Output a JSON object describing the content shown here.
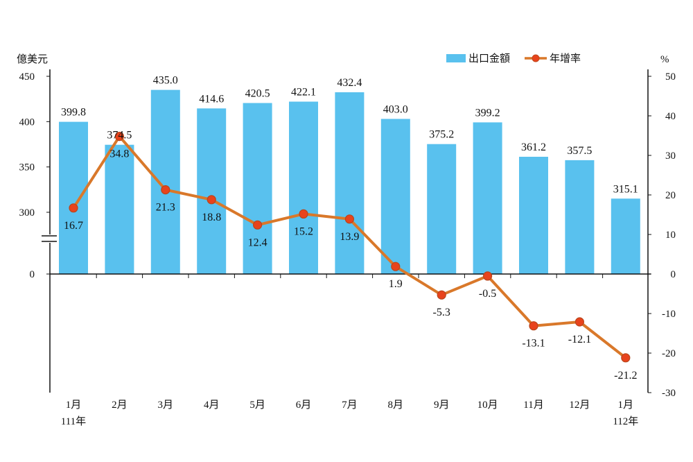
{
  "chart_data": {
    "type": "bar",
    "categories": [
      "1月",
      "2月",
      "3月",
      "4月",
      "5月",
      "6月",
      "7月",
      "8月",
      "9月",
      "10月",
      "11月",
      "12月",
      "1月"
    ],
    "year_labels": [
      "111年",
      "",
      "",
      "",
      "",
      "",
      "",
      "",
      "",
      "",
      "",
      "",
      "112年"
    ],
    "series": [
      {
        "name": "出口金額",
        "type": "bar",
        "axis": "left",
        "color": "#59c1ee",
        "values": [
          399.8,
          374.5,
          435.0,
          414.6,
          420.5,
          422.1,
          432.4,
          403.0,
          375.2,
          399.2,
          361.2,
          357.5,
          315.1
        ],
        "labels": [
          "399.8",
          "374.5",
          "435.0",
          "414.6",
          "420.5",
          "422.1",
          "432.4",
          "403.0",
          "375.2",
          "399.2",
          "361.2",
          "357.5",
          "315.1"
        ]
      },
      {
        "name": "年增率",
        "type": "line",
        "axis": "right",
        "color": "#d9782a",
        "marker_color": "#e8431c",
        "values": [
          16.7,
          34.8,
          21.3,
          18.8,
          12.4,
          15.2,
          13.9,
          1.9,
          -5.3,
          -0.5,
          -13.1,
          -12.1,
          -21.2
        ],
        "labels": [
          "16.7",
          "34.8",
          "21.3",
          "18.8",
          "12.4",
          "15.2",
          "13.9",
          "1.9",
          "-5.3",
          "-0.5",
          "-13.1",
          "-12.1",
          "-21.2"
        ]
      }
    ],
    "left_axis": {
      "unit": "億美元",
      "ticks": [
        0,
        300,
        350,
        400,
        450
      ],
      "tick_labels": [
        "0",
        "300",
        "350",
        "400",
        "450"
      ],
      "broken": true,
      "break_from": 0,
      "break_to": 250
    },
    "right_axis": {
      "unit": "%",
      "ylim": [
        -30,
        50
      ],
      "ticks": [
        50,
        40,
        30,
        20,
        10,
        0,
        -10,
        -20,
        -30
      ],
      "tick_labels": [
        "50",
        "40",
        "30",
        "20",
        "10",
        "0",
        "-10",
        "-20",
        "-30"
      ]
    },
    "legend": {
      "position": "top-right",
      "entries": [
        "出口金額",
        "年增率"
      ]
    },
    "grid": false
  }
}
